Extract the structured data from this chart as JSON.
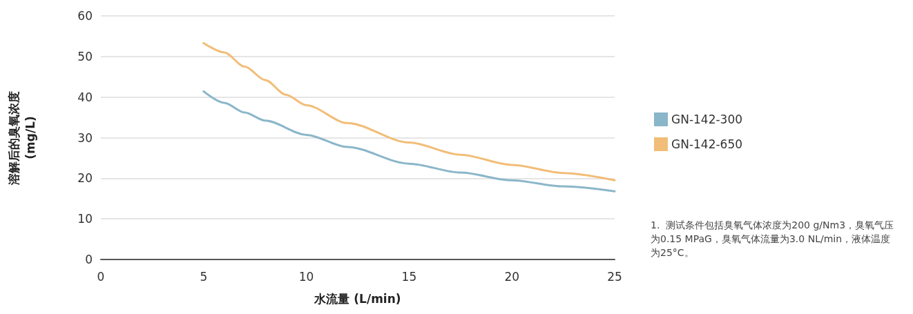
{
  "chart_data": {
    "type": "line",
    "xlabel": "水流量 (L/min)",
    "ylabel": "溶解后的臭氧浓度\n(mg/L)",
    "xlim": [
      0,
      25
    ],
    "xticks": [
      0,
      5,
      10,
      15,
      20,
      25
    ],
    "ylim": [
      0,
      60
    ],
    "yticks": [
      0,
      10,
      20,
      30,
      40,
      50,
      60
    ],
    "grid": "y",
    "legend": "right",
    "marker": "none",
    "line_style": "solid",
    "series": [
      {
        "name": "GN-142-300",
        "color": "#8ab6c9",
        "x": [
          5,
          6,
          7,
          8,
          10,
          12,
          15,
          17.5,
          20,
          22.5,
          25
        ],
        "values": [
          41.4,
          38.6,
          36.2,
          34.2,
          30.7,
          27.7,
          23.6,
          21.4,
          19.5,
          18.0,
          16.8
        ]
      },
      {
        "name": "GN-142-650",
        "color": "#f2bd78",
        "x": [
          5,
          6,
          7,
          8,
          9,
          10,
          12,
          15,
          17.5,
          20,
          22.5,
          25
        ],
        "values": [
          53.3,
          51.0,
          47.5,
          44.2,
          40.6,
          38.0,
          33.6,
          28.8,
          25.8,
          23.3,
          21.3,
          19.5
        ]
      }
    ],
    "annotations": [
      "1.  测试条件包括臭氧气体浓度为200 g/Nm3，臭氧气压为0.15 MPaG，臭氧气体流量为3.0 NL/min，液体温度为25°C。"
    ]
  }
}
